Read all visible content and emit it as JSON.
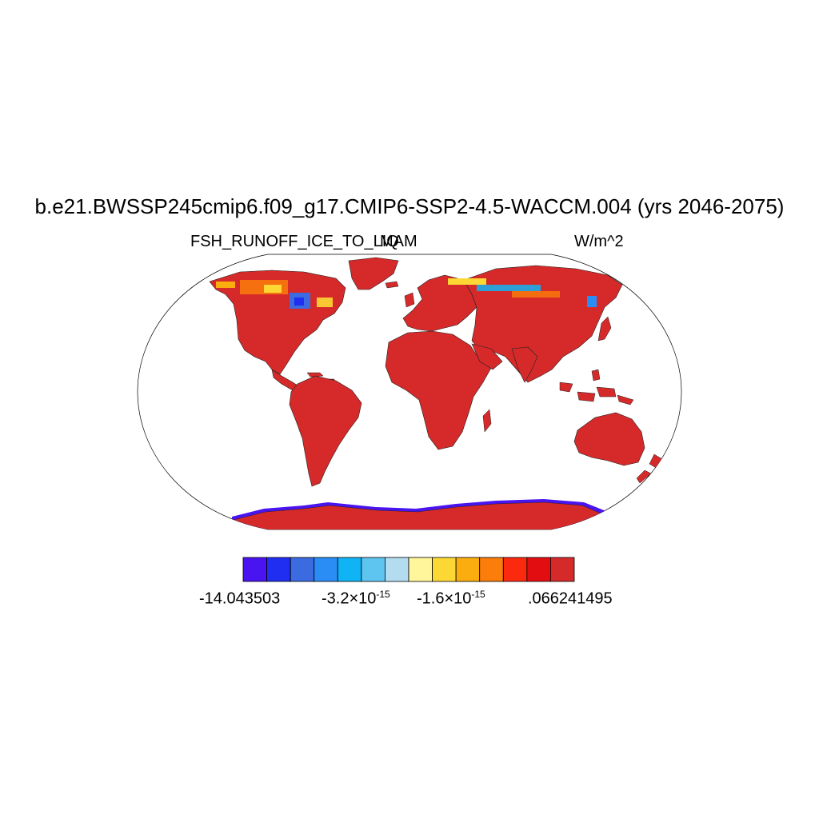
{
  "title": "b.e21.BWSSP245cmip6.f09_g17.CMIP6-SSP2-4.5-WACCM.004 (yrs 2046-2075)",
  "left_string": "FSH_RUNOFF_ICE_TO_LIQ",
  "center_string": "MAM",
  "right_string": "W/m^2",
  "colorbar": {
    "colors": [
      "#4a14f0",
      "#1f2ef0",
      "#3c6ae0",
      "#2a8cf5",
      "#10b4f5",
      "#5ec4f0",
      "#b4dcf0",
      "#fff59a",
      "#fdd835",
      "#fbad0f",
      "#fb7d0a",
      "#fb2a0e",
      "#e20d10",
      "#d62a2a"
    ],
    "labels": [
      {
        "mant": "-14.043503",
        "exp": ""
      },
      {
        "mant": "-3.2×10",
        "exp": "-15"
      },
      {
        "mant": "-1.6×10",
        "exp": "-15"
      },
      {
        "mant": ".066241495",
        "exp": ""
      }
    ]
  },
  "map_colors": {
    "land": "#d62a2a",
    "outline": "#000000"
  }
}
